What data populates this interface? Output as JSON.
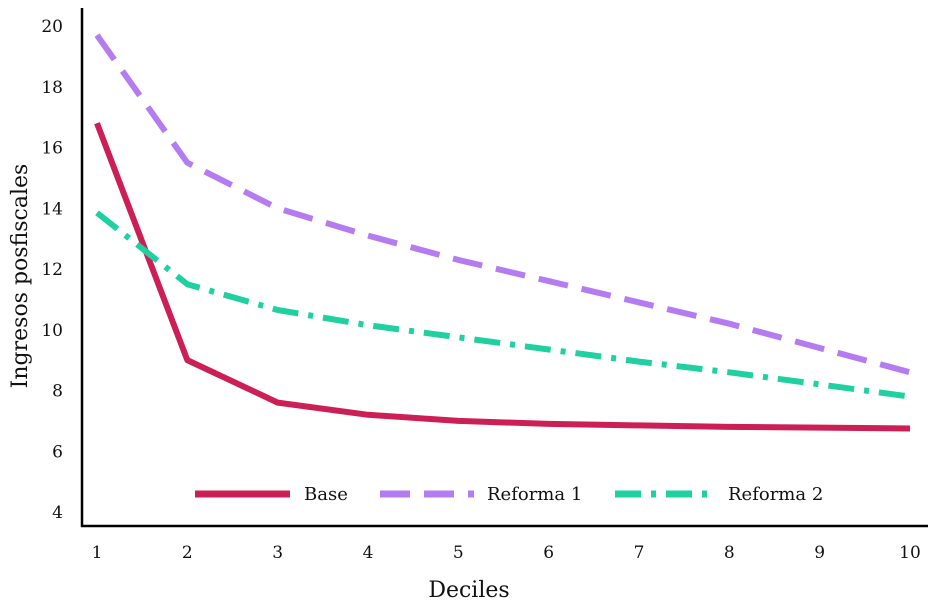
{
  "chart_data": {
    "type": "line",
    "xlabel": "Deciles",
    "ylabel": "Ingresos posfiscales",
    "x": [
      1,
      2,
      3,
      4,
      5,
      6,
      7,
      8,
      9,
      10
    ],
    "xlim": [
      1,
      10
    ],
    "ylim": [
      4,
      20
    ],
    "yticks": [
      4,
      6,
      8,
      10,
      12,
      14,
      16,
      18,
      20
    ],
    "grid": false,
    "legend_position": "bottom-center",
    "series": [
      {
        "name": "Base",
        "color": "#cc1f55",
        "dash": "solid",
        "values": [
          16.8,
          9.0,
          7.6,
          7.2,
          7.0,
          6.9,
          6.85,
          6.8,
          6.78,
          6.75
        ]
      },
      {
        "name": "Reforma 1",
        "color": "#b57cf2",
        "dash": "dashed",
        "values": [
          19.7,
          15.5,
          14.0,
          13.1,
          12.3,
          11.6,
          10.9,
          10.2,
          9.4,
          8.6
        ]
      },
      {
        "name": "Reforma 2",
        "color": "#1fd1a0",
        "dash": "dashdot",
        "values": [
          13.85,
          11.5,
          10.65,
          10.15,
          9.75,
          9.35,
          8.95,
          8.6,
          8.2,
          7.8
        ]
      }
    ]
  }
}
